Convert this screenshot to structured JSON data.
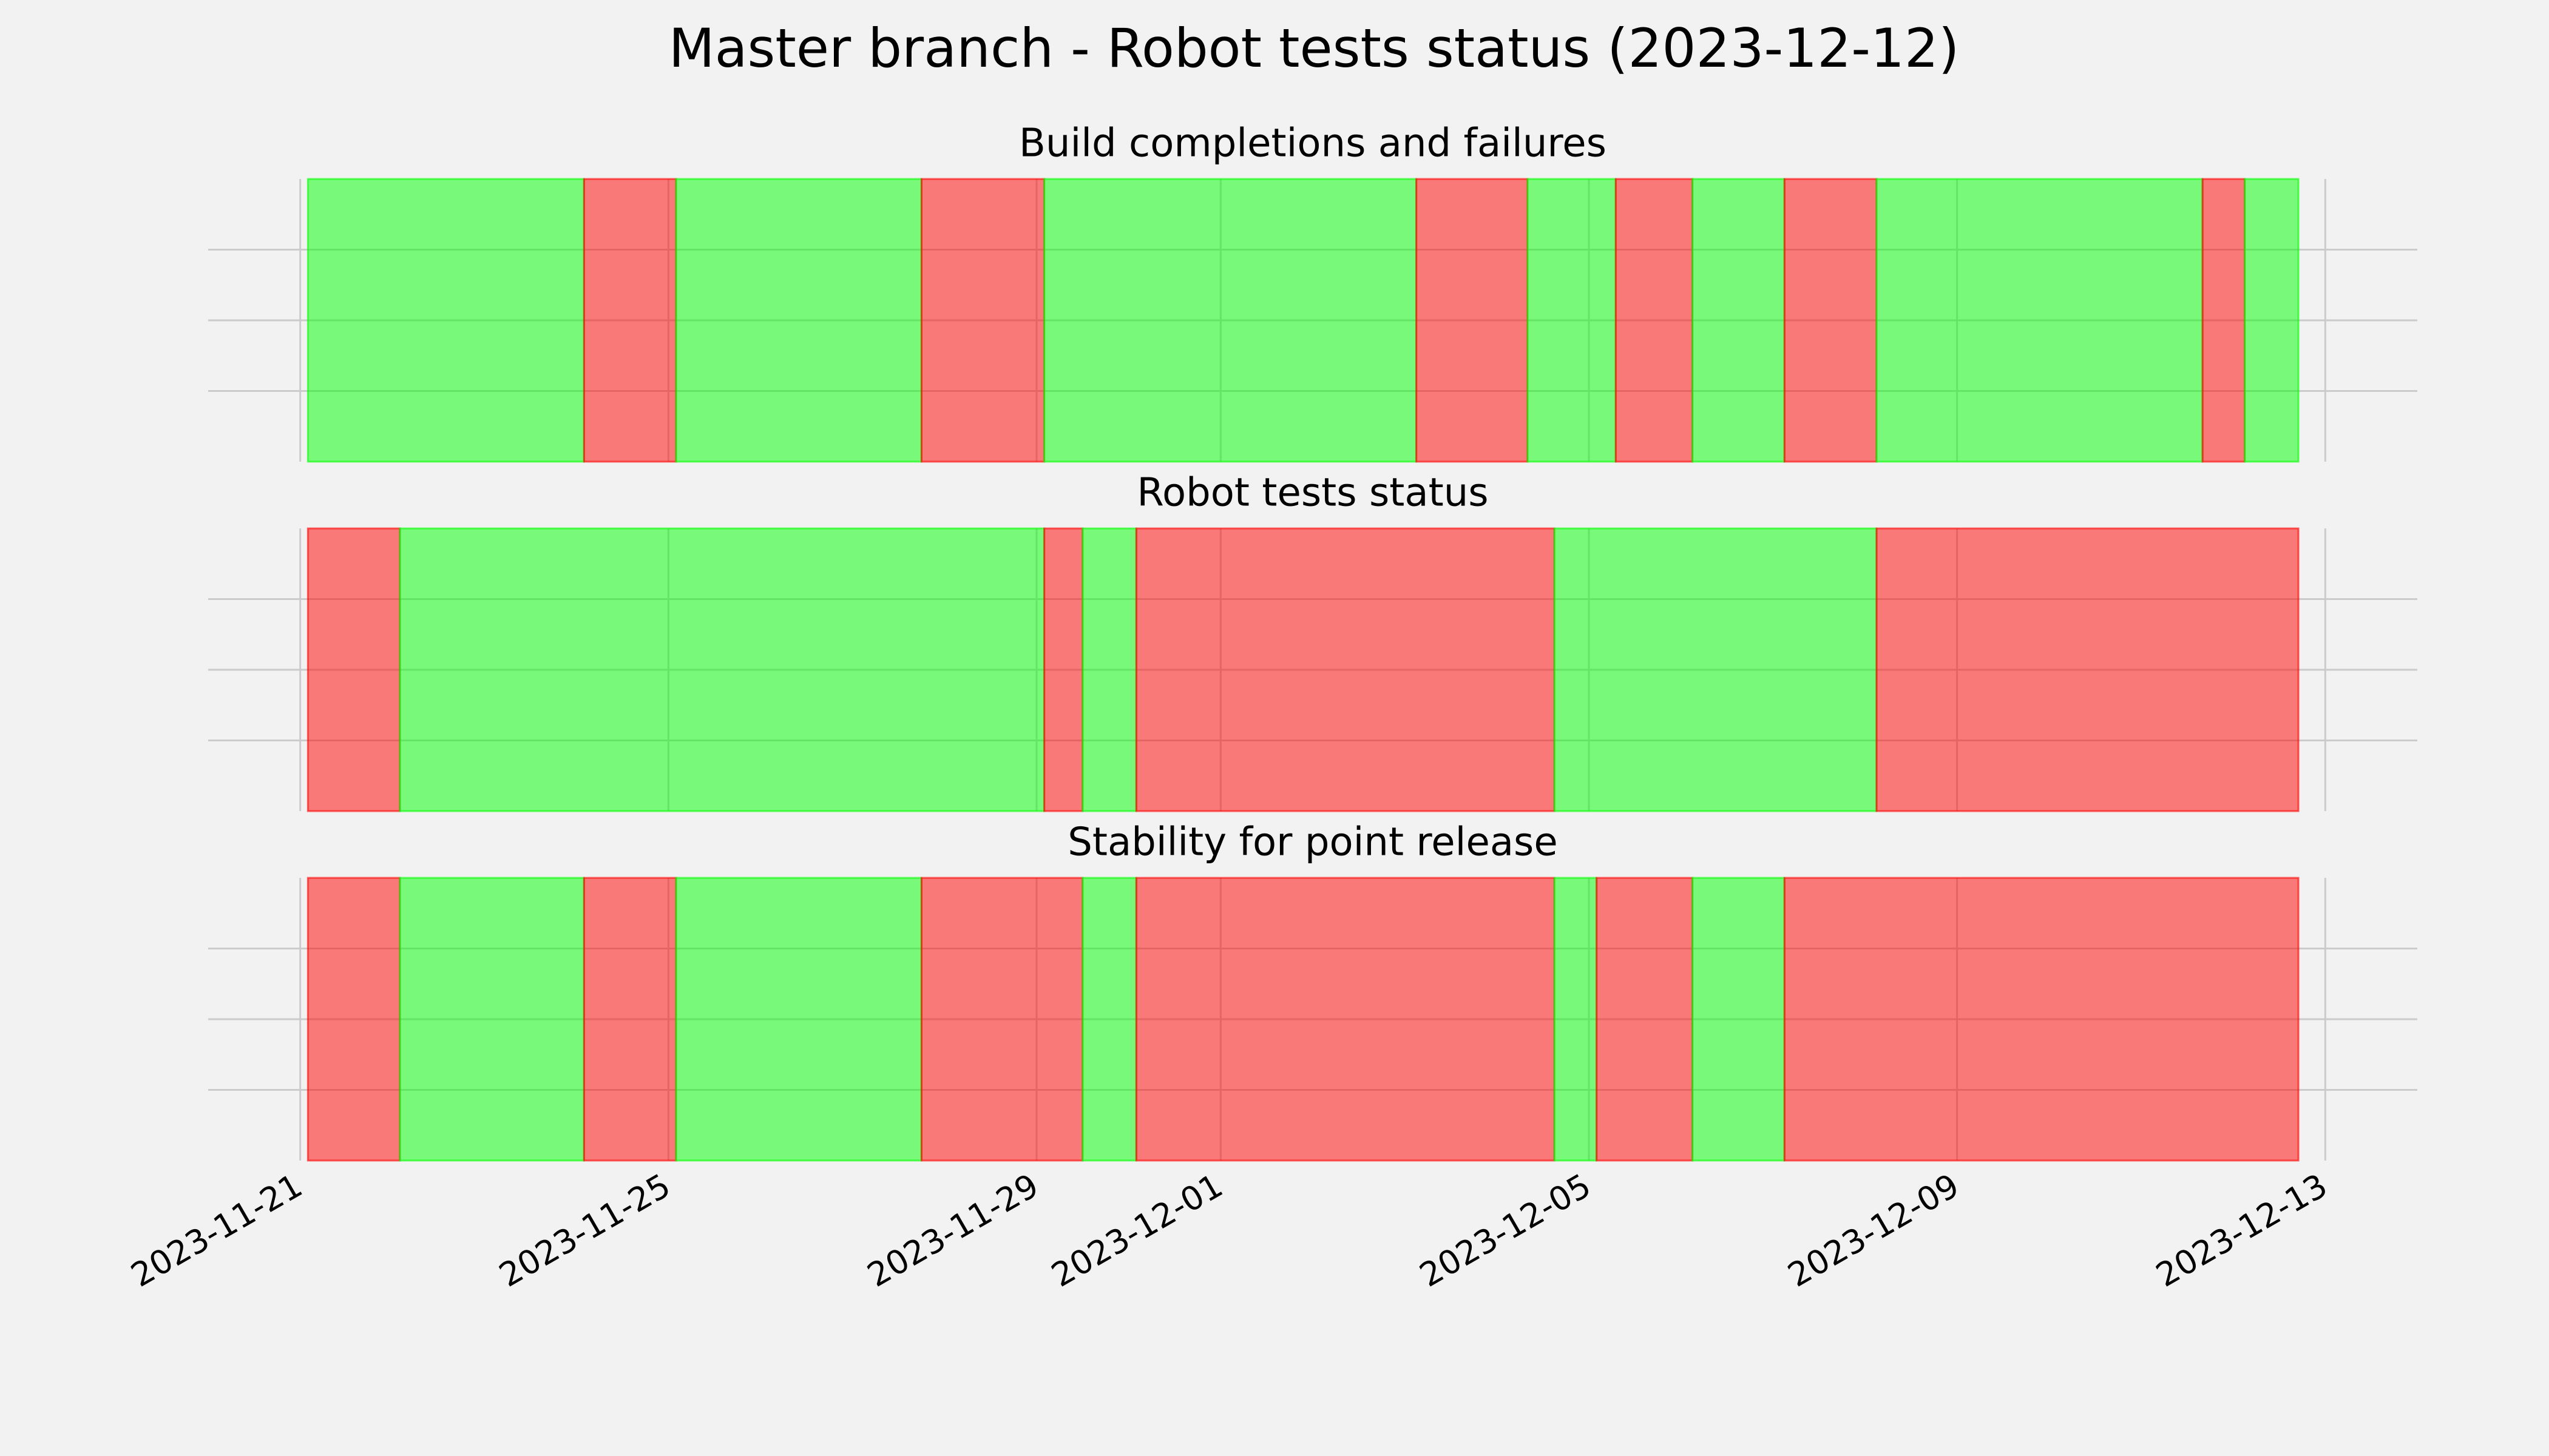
{
  "title": "Master branch - Robot tests status (2023-12-12)",
  "colors": {
    "pass": "#00ff00",
    "fail": "#ff0000"
  },
  "chart_data": [
    {
      "type": "timeline",
      "title": "Build completions and failures",
      "x": [
        "2023-11-21T02:00",
        "2023-11-24T02:00",
        "2023-11-25T02:00",
        "2023-11-27T18:00",
        "2023-11-29T02:00",
        "2023-12-03T03:00",
        "2023-12-04T08:00",
        "2023-12-05T07:00",
        "2023-12-06T03:00",
        "2023-12-07T03:00",
        "2023-12-08T03:00",
        "2023-12-11T16:00",
        "2023-12-12T03:00",
        "2023-12-12T17:00"
      ],
      "states": [
        "pass",
        "fail",
        "pass",
        "fail",
        "pass",
        "fail",
        "pass",
        "fail",
        "pass",
        "fail",
        "pass",
        "fail",
        "pass"
      ],
      "xlim": [
        "2023-11-20",
        "2023-12-14"
      ],
      "xticks": [
        "2023-11-21",
        "2023-11-25",
        "2023-11-29",
        "2023-12-01",
        "2023-12-05",
        "2023-12-09",
        "2023-12-13"
      ],
      "ylim": [
        0,
        1
      ],
      "yticks": [
        0.25,
        0.5,
        0.75
      ],
      "grid": true
    },
    {
      "type": "timeline",
      "title": "Robot tests status",
      "x": [
        "2023-11-21T02:00",
        "2023-11-22T02:00",
        "2023-11-29T02:00",
        "2023-11-29T12:00",
        "2023-11-30T02:00",
        "2023-12-04T15:00",
        "2023-12-08T03:00",
        "2023-12-12T17:00"
      ],
      "states": [
        "fail",
        "pass",
        "fail",
        "pass",
        "fail",
        "pass",
        "fail"
      ],
      "xlim": [
        "2023-11-20",
        "2023-12-14"
      ],
      "xticks": [
        "2023-11-21",
        "2023-11-25",
        "2023-11-29",
        "2023-12-01",
        "2023-12-05",
        "2023-12-09",
        "2023-12-13"
      ],
      "ylim": [
        0,
        1
      ],
      "yticks": [
        0.25,
        0.5,
        0.75
      ],
      "grid": true
    },
    {
      "type": "timeline",
      "title": "Stability for point release",
      "x": [
        "2023-11-21T02:00",
        "2023-11-22T02:00",
        "2023-11-24T02:00",
        "2023-11-25T02:00",
        "2023-11-27T18:00",
        "2023-11-29T12:00",
        "2023-11-30T02:00",
        "2023-12-04T15:00",
        "2023-12-05T02:00",
        "2023-12-06T03:00",
        "2023-12-07T03:00",
        "2023-12-12T17:00"
      ],
      "states": [
        "fail",
        "pass",
        "fail",
        "pass",
        "fail",
        "pass",
        "fail",
        "pass",
        "fail",
        "pass",
        "fail"
      ],
      "xlim": [
        "2023-11-20",
        "2023-12-14"
      ],
      "xticks": [
        "2023-11-21",
        "2023-11-25",
        "2023-11-29",
        "2023-12-01",
        "2023-12-05",
        "2023-12-09",
        "2023-12-13"
      ],
      "ylim": [
        0,
        1
      ],
      "yticks": [
        0.25,
        0.5,
        0.75
      ],
      "grid": true,
      "show_xtick_labels": true
    }
  ]
}
